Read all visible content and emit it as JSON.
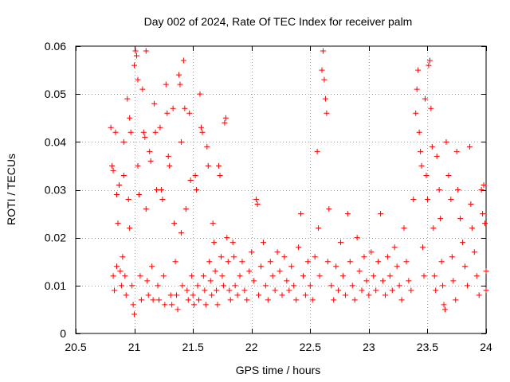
{
  "chart_data": {
    "type": "scatter",
    "title": "Day 002 of 2024, Rate Of TEC Index for receiver palm",
    "xlabel": "GPS time / hours",
    "ylabel": "ROTI / TECUs",
    "xlim": [
      20.5,
      24
    ],
    "ylim": [
      0,
      0.06
    ],
    "xticks": [
      20.5,
      21,
      21.5,
      22,
      22.5,
      23,
      23.5,
      24
    ],
    "xtick_labels": [
      "20.5",
      "21",
      "21.5",
      "22",
      "22.5",
      "23",
      "23.5",
      "24"
    ],
    "yticks": [
      0,
      0.01,
      0.02,
      0.03,
      0.04,
      0.05,
      0.06
    ],
    "ytick_labels": [
      "0",
      "0.01",
      "0.02",
      "0.03",
      "0.04",
      "0.05",
      "0.06"
    ],
    "grid": true,
    "marker": "+",
    "marker_color": "#ff0000",
    "series": [
      {
        "name": "ROTI",
        "points": [
          [
            20.8,
            0.043
          ],
          [
            20.81,
            0.035
          ],
          [
            20.82,
            0.034
          ],
          [
            20.82,
            0.012
          ],
          [
            20.83,
            0.009
          ],
          [
            20.84,
            0.042
          ],
          [
            20.85,
            0.029
          ],
          [
            20.85,
            0.014
          ],
          [
            20.86,
            0.023
          ],
          [
            20.87,
            0.031
          ],
          [
            20.88,
            0.013
          ],
          [
            20.89,
            0.01
          ],
          [
            20.9,
            0.016
          ],
          [
            20.91,
            0.04
          ],
          [
            20.91,
            0.033
          ],
          [
            20.92,
            0.012
          ],
          [
            20.93,
            0.008
          ],
          [
            20.94,
            0.049
          ],
          [
            20.95,
            0.028
          ],
          [
            20.96,
            0.022
          ],
          [
            20.96,
            0.045
          ],
          [
            20.97,
            0.042
          ],
          [
            20.98,
            0.01
          ],
          [
            20.99,
            0.006
          ],
          [
            21.0,
            0.004
          ],
          [
            21.0,
            0.056
          ],
          [
            21.01,
            0.059
          ],
          [
            21.02,
            0.058
          ],
          [
            21.03,
            0.053
          ],
          [
            21.03,
            0.035
          ],
          [
            21.04,
            0.029
          ],
          [
            21.05,
            0.012
          ],
          [
            21.06,
            0.007
          ],
          [
            21.07,
            0.051
          ],
          [
            21.08,
            0.042
          ],
          [
            21.09,
            0.041
          ],
          [
            21.1,
            0.059
          ],
          [
            21.1,
            0.026
          ],
          [
            21.11,
            0.011
          ],
          [
            21.12,
            0.008
          ],
          [
            21.13,
            0.038
          ],
          [
            21.14,
            0.036
          ],
          [
            21.15,
            0.014
          ],
          [
            21.16,
            0.007
          ],
          [
            21.17,
            0.048
          ],
          [
            21.18,
            0.042
          ],
          [
            21.19,
            0.03
          ],
          [
            21.2,
            0.01
          ],
          [
            21.21,
            0.007
          ],
          [
            21.22,
            0.043
          ],
          [
            21.23,
            0.03
          ],
          [
            21.24,
            0.028
          ],
          [
            21.25,
            0.012
          ],
          [
            21.26,
            0.006
          ],
          [
            21.27,
            0.052
          ],
          [
            21.28,
            0.046
          ],
          [
            21.29,
            0.037
          ],
          [
            21.3,
            0.035
          ],
          [
            21.31,
            0.008
          ],
          [
            21.32,
            0.006
          ],
          [
            21.33,
            0.047
          ],
          [
            21.34,
            0.023
          ],
          [
            21.35,
            0.015
          ],
          [
            21.36,
            0.008
          ],
          [
            21.37,
            0.005
          ],
          [
            21.38,
            0.054
          ],
          [
            21.39,
            0.052
          ],
          [
            21.4,
            0.04
          ],
          [
            21.4,
            0.021
          ],
          [
            21.41,
            0.01
          ],
          [
            21.42,
            0.057
          ],
          [
            21.43,
            0.047
          ],
          [
            21.44,
            0.026
          ],
          [
            21.45,
            0.009
          ],
          [
            21.46,
            0.007
          ],
          [
            21.47,
            0.046
          ],
          [
            21.48,
            0.032
          ],
          [
            21.49,
            0.012
          ],
          [
            21.5,
            0.008
          ],
          [
            21.51,
            0.006
          ],
          [
            21.52,
            0.033
          ],
          [
            21.53,
            0.03
          ],
          [
            21.54,
            0.01
          ],
          [
            21.55,
            0.007
          ],
          [
            21.56,
            0.05
          ],
          [
            21.57,
            0.043
          ],
          [
            21.58,
            0.042
          ],
          [
            21.59,
            0.012
          ],
          [
            21.6,
            0.009
          ],
          [
            21.61,
            0.006
          ],
          [
            21.62,
            0.039
          ],
          [
            21.63,
            0.035
          ],
          [
            21.64,
            0.015
          ],
          [
            21.65,
            0.011
          ],
          [
            21.66,
            0.008
          ],
          [
            21.67,
            0.023
          ],
          [
            21.68,
            0.019
          ],
          [
            21.69,
            0.013
          ],
          [
            21.7,
            0.009
          ],
          [
            21.71,
            0.006
          ],
          [
            21.72,
            0.035
          ],
          [
            21.73,
            0.033
          ],
          [
            21.74,
            0.016
          ],
          [
            21.75,
            0.012
          ],
          [
            21.76,
            0.01
          ],
          [
            21.77,
            0.044
          ],
          [
            21.78,
            0.045
          ],
          [
            21.79,
            0.02
          ],
          [
            21.8,
            0.015
          ],
          [
            21.81,
            0.009
          ],
          [
            21.82,
            0.007
          ],
          [
            21.84,
            0.019
          ],
          [
            21.85,
            0.016
          ],
          [
            21.86,
            0.01
          ],
          [
            21.88,
            0.008
          ],
          [
            21.9,
            0.012
          ],
          [
            21.92,
            0.015
          ],
          [
            21.94,
            0.009
          ],
          [
            21.96,
            0.007
          ],
          [
            21.98,
            0.013
          ],
          [
            22.0,
            0.017
          ],
          [
            22.02,
            0.011
          ],
          [
            22.04,
            0.028
          ],
          [
            22.05,
            0.027
          ],
          [
            22.06,
            0.008
          ],
          [
            22.08,
            0.014
          ],
          [
            22.1,
            0.019
          ],
          [
            22.12,
            0.01
          ],
          [
            22.14,
            0.007
          ],
          [
            22.16,
            0.015
          ],
          [
            22.18,
            0.012
          ],
          [
            22.2,
            0.009
          ],
          [
            22.22,
            0.017
          ],
          [
            22.24,
            0.013
          ],
          [
            22.26,
            0.008
          ],
          [
            22.28,
            0.016
          ],
          [
            22.3,
            0.011
          ],
          [
            22.32,
            0.009
          ],
          [
            22.34,
            0.014
          ],
          [
            22.36,
            0.01
          ],
          [
            22.38,
            0.007
          ],
          [
            22.4,
            0.018
          ],
          [
            22.42,
            0.025
          ],
          [
            22.44,
            0.012
          ],
          [
            22.46,
            0.008
          ],
          [
            22.48,
            0.015
          ],
          [
            22.5,
            0.01
          ],
          [
            22.52,
            0.007
          ],
          [
            22.54,
            0.016
          ],
          [
            22.56,
            0.038
          ],
          [
            22.57,
            0.022
          ],
          [
            22.58,
            0.012
          ],
          [
            22.6,
            0.055
          ],
          [
            22.61,
            0.059
          ],
          [
            22.62,
            0.053
          ],
          [
            22.63,
            0.049
          ],
          [
            22.64,
            0.046
          ],
          [
            22.65,
            0.015
          ],
          [
            22.66,
            0.026
          ],
          [
            22.68,
            0.01
          ],
          [
            22.7,
            0.007
          ],
          [
            22.72,
            0.014
          ],
          [
            22.74,
            0.009
          ],
          [
            22.76,
            0.019
          ],
          [
            22.78,
            0.012
          ],
          [
            22.8,
            0.008
          ],
          [
            22.82,
            0.025
          ],
          [
            22.84,
            0.015
          ],
          [
            22.86,
            0.01
          ],
          [
            22.88,
            0.007
          ],
          [
            22.9,
            0.02
          ],
          [
            22.92,
            0.013
          ],
          [
            22.94,
            0.009
          ],
          [
            22.96,
            0.016
          ],
          [
            22.98,
            0.011
          ],
          [
            23.0,
            0.008
          ],
          [
            23.02,
            0.017
          ],
          [
            23.04,
            0.012
          ],
          [
            23.06,
            0.009
          ],
          [
            23.08,
            0.015
          ],
          [
            23.1,
            0.025
          ],
          [
            23.12,
            0.011
          ],
          [
            23.14,
            0.008
          ],
          [
            23.16,
            0.016
          ],
          [
            23.18,
            0.012
          ],
          [
            23.2,
            0.009
          ],
          [
            23.22,
            0.018
          ],
          [
            23.24,
            0.014
          ],
          [
            23.26,
            0.01
          ],
          [
            23.28,
            0.007
          ],
          [
            23.3,
            0.022
          ],
          [
            23.32,
            0.015
          ],
          [
            23.34,
            0.011
          ],
          [
            23.36,
            0.009
          ],
          [
            23.38,
            0.028
          ],
          [
            23.4,
            0.046
          ],
          [
            23.41,
            0.051
          ],
          [
            23.42,
            0.055
          ],
          [
            23.43,
            0.042
          ],
          [
            23.44,
            0.038
          ],
          [
            23.45,
            0.035
          ],
          [
            23.46,
            0.018
          ],
          [
            23.47,
            0.012
          ],
          [
            23.48,
            0.049
          ],
          [
            23.49,
            0.033
          ],
          [
            23.5,
            0.028
          ],
          [
            23.51,
            0.056
          ],
          [
            23.52,
            0.057
          ],
          [
            23.53,
            0.047
          ],
          [
            23.54,
            0.039
          ],
          [
            23.55,
            0.022
          ],
          [
            23.56,
            0.012
          ],
          [
            23.57,
            0.009
          ],
          [
            23.58,
            0.037
          ],
          [
            23.6,
            0.03
          ],
          [
            23.61,
            0.024
          ],
          [
            23.62,
            0.015
          ],
          [
            23.63,
            0.01
          ],
          [
            23.64,
            0.006
          ],
          [
            23.65,
            0.005
          ],
          [
            23.66,
            0.04
          ],
          [
            23.68,
            0.033
          ],
          [
            23.7,
            0.028
          ],
          [
            23.71,
            0.016
          ],
          [
            23.72,
            0.011
          ],
          [
            23.74,
            0.007
          ],
          [
            23.75,
            0.038
          ],
          [
            23.76,
            0.03
          ],
          [
            23.78,
            0.024
          ],
          [
            23.8,
            0.019
          ],
          [
            23.82,
            0.014
          ],
          [
            23.84,
            0.01
          ],
          [
            23.86,
            0.039
          ],
          [
            23.87,
            0.027
          ],
          [
            23.88,
            0.022
          ],
          [
            23.9,
            0.017
          ],
          [
            23.92,
            0.012
          ],
          [
            23.94,
            0.008
          ],
          [
            23.96,
            0.03
          ],
          [
            23.97,
            0.025
          ],
          [
            23.98,
            0.031
          ],
          [
            23.99,
            0.023
          ],
          [
            24.0,
            0.013
          ],
          [
            24.0,
            0.009
          ]
        ]
      }
    ]
  }
}
